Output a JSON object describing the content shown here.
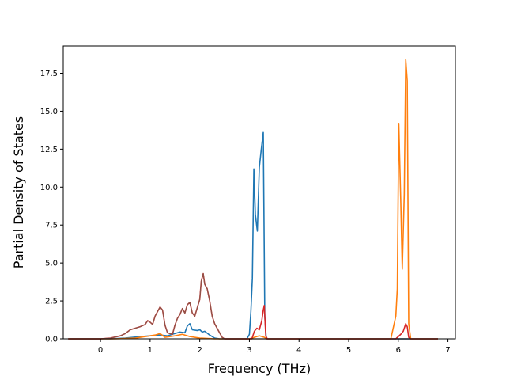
{
  "chart_data": {
    "type": "line",
    "title": "",
    "xlabel": "Frequency (THz)",
    "ylabel": "Partial Density of States",
    "xlim": [
      -0.75,
      7.15
    ],
    "ylim": [
      0,
      19.3
    ],
    "xticks": [
      0,
      1,
      2,
      3,
      4,
      5,
      6,
      7
    ],
    "xtick_labels": [
      "0",
      "1",
      "2",
      "3",
      "4",
      "5",
      "6",
      "7"
    ],
    "yticks": [
      0.0,
      2.5,
      5.0,
      7.5,
      10.0,
      12.5,
      15.0,
      17.5
    ],
    "ytick_labels": [
      "0.0",
      "2.5",
      "5.0",
      "7.5",
      "10.0",
      "12.5",
      "15.0",
      "17.5"
    ],
    "grid": false,
    "legend": "none",
    "series": [
      {
        "color": "#1f77b4",
        "points": [
          [
            -0.65,
            0
          ],
          [
            0.2,
            0
          ],
          [
            0.5,
            0.05
          ],
          [
            0.8,
            0.15
          ],
          [
            1.0,
            0.2
          ],
          [
            1.2,
            0.25
          ],
          [
            1.35,
            0.2
          ],
          [
            1.5,
            0.35
          ],
          [
            1.6,
            0.45
          ],
          [
            1.7,
            0.4
          ],
          [
            1.75,
            0.85
          ],
          [
            1.8,
            1.0
          ],
          [
            1.85,
            0.6
          ],
          [
            1.95,
            0.55
          ],
          [
            2.0,
            0.6
          ],
          [
            2.05,
            0.45
          ],
          [
            2.1,
            0.5
          ],
          [
            2.2,
            0.25
          ],
          [
            2.3,
            0.05
          ],
          [
            2.4,
            0
          ],
          [
            2.95,
            0
          ],
          [
            3.0,
            0.3
          ],
          [
            3.03,
            1.8
          ],
          [
            3.06,
            4.0
          ],
          [
            3.09,
            11.2
          ],
          [
            3.12,
            8.2
          ],
          [
            3.16,
            7.1
          ],
          [
            3.2,
            11.3
          ],
          [
            3.24,
            12.5
          ],
          [
            3.28,
            13.6
          ],
          [
            3.31,
            1.5
          ],
          [
            3.34,
            0
          ],
          [
            6.8,
            0
          ]
        ]
      },
      {
        "color": "#ff7f0e",
        "points": [
          [
            -0.65,
            0
          ],
          [
            0.3,
            0
          ],
          [
            0.7,
            0.05
          ],
          [
            1.0,
            0.2
          ],
          [
            1.1,
            0.25
          ],
          [
            1.2,
            0.35
          ],
          [
            1.3,
            0.1
          ],
          [
            1.5,
            0.2
          ],
          [
            1.65,
            0.3
          ],
          [
            1.8,
            0.15
          ],
          [
            2.0,
            0.05
          ],
          [
            2.3,
            0
          ],
          [
            3.0,
            0
          ],
          [
            3.1,
            0.1
          ],
          [
            3.2,
            0.2
          ],
          [
            3.3,
            0.1
          ],
          [
            3.35,
            0
          ],
          [
            5.85,
            0
          ],
          [
            5.95,
            1.5
          ],
          [
            5.98,
            3.3
          ],
          [
            6.01,
            14.2
          ],
          [
            6.05,
            9.0
          ],
          [
            6.08,
            4.6
          ],
          [
            6.12,
            9.5
          ],
          [
            6.15,
            18.4
          ],
          [
            6.18,
            17.0
          ],
          [
            6.21,
            1.0
          ],
          [
            6.25,
            0
          ],
          [
            6.8,
            0
          ]
        ]
      },
      {
        "color": "#d62728",
        "points": [
          [
            -0.65,
            0
          ],
          [
            0.0,
            0
          ],
          [
            0.2,
            0.05
          ],
          [
            0.4,
            0.2
          ],
          [
            0.5,
            0.35
          ],
          [
            0.6,
            0.6
          ],
          [
            0.8,
            0.8
          ],
          [
            0.9,
            0.95
          ],
          [
            0.95,
            1.2
          ],
          [
            1.0,
            1.1
          ],
          [
            1.05,
            0.95
          ],
          [
            1.1,
            1.5
          ],
          [
            1.15,
            1.8
          ],
          [
            1.2,
            2.1
          ],
          [
            1.25,
            1.9
          ],
          [
            1.3,
            0.9
          ],
          [
            1.35,
            0.4
          ],
          [
            1.45,
            0.3
          ],
          [
            1.5,
            0.9
          ],
          [
            1.55,
            1.35
          ],
          [
            1.6,
            1.6
          ],
          [
            1.65,
            2.0
          ],
          [
            1.7,
            1.7
          ],
          [
            1.75,
            2.25
          ],
          [
            1.8,
            2.4
          ],
          [
            1.85,
            1.7
          ],
          [
            1.9,
            1.5
          ],
          [
            1.95,
            2.05
          ],
          [
            2.0,
            2.6
          ],
          [
            2.03,
            3.8
          ],
          [
            2.07,
            4.3
          ],
          [
            2.1,
            3.6
          ],
          [
            2.15,
            3.3
          ],
          [
            2.2,
            2.5
          ],
          [
            2.25,
            1.5
          ],
          [
            2.3,
            1.0
          ],
          [
            2.35,
            0.7
          ],
          [
            2.4,
            0.4
          ],
          [
            2.45,
            0.1
          ],
          [
            2.5,
            0
          ],
          [
            3.05,
            0
          ],
          [
            3.1,
            0.5
          ],
          [
            3.15,
            0.7
          ],
          [
            3.2,
            0.6
          ],
          [
            3.25,
            1.2
          ],
          [
            3.28,
            1.9
          ],
          [
            3.3,
            2.2
          ],
          [
            3.33,
            0.2
          ],
          [
            3.36,
            0
          ],
          [
            5.95,
            0
          ],
          [
            6.05,
            0.3
          ],
          [
            6.1,
            0.5
          ],
          [
            6.15,
            1.0
          ],
          [
            6.18,
            0.8
          ],
          [
            6.21,
            0.1
          ],
          [
            6.25,
            0
          ],
          [
            6.8,
            0
          ]
        ]
      },
      {
        "color": "#8c564b",
        "points": [
          [
            -0.65,
            0
          ],
          [
            0.0,
            0
          ],
          [
            0.2,
            0.05
          ],
          [
            0.4,
            0.2
          ],
          [
            0.5,
            0.35
          ],
          [
            0.6,
            0.6
          ],
          [
            0.8,
            0.8
          ],
          [
            0.9,
            0.95
          ],
          [
            0.95,
            1.2
          ],
          [
            1.0,
            1.1
          ],
          [
            1.05,
            0.95
          ],
          [
            1.1,
            1.5
          ],
          [
            1.15,
            1.8
          ],
          [
            1.2,
            2.1
          ],
          [
            1.25,
            1.9
          ],
          [
            1.3,
            0.9
          ],
          [
            1.35,
            0.4
          ],
          [
            1.45,
            0.3
          ],
          [
            1.5,
            0.9
          ],
          [
            1.55,
            1.35
          ],
          [
            1.6,
            1.6
          ],
          [
            1.65,
            2.0
          ],
          [
            1.7,
            1.7
          ],
          [
            1.75,
            2.25
          ],
          [
            1.8,
            2.4
          ],
          [
            1.85,
            1.7
          ],
          [
            1.9,
            1.5
          ],
          [
            1.95,
            2.05
          ],
          [
            2.0,
            2.6
          ],
          [
            2.03,
            3.8
          ],
          [
            2.07,
            4.3
          ],
          [
            2.1,
            3.6
          ],
          [
            2.15,
            3.3
          ],
          [
            2.2,
            2.5
          ],
          [
            2.25,
            1.5
          ],
          [
            2.3,
            1.0
          ],
          [
            2.35,
            0.7
          ],
          [
            2.4,
            0.4
          ],
          [
            2.45,
            0.1
          ],
          [
            2.5,
            0
          ],
          [
            6.8,
            0
          ]
        ]
      }
    ]
  }
}
